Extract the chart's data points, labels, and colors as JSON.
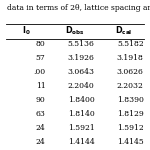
{
  "title": "data in terms of 2θ, lattice spacing and",
  "col_labels": [
    "$\\mathbf{I_0}$",
    "$\\mathbf{D_{obs}}$",
    "$\\mathbf{D_{cal}}$"
  ],
  "rows": [
    [
      "80",
      "5.5136",
      "5.5182"
    ],
    [
      "57",
      "3.1926",
      "3.1918"
    ],
    [
      ".00",
      "3.0643",
      "3.0626"
    ],
    [
      "11",
      "2.2040",
      "2.2032"
    ],
    [
      "90",
      "1.8400",
      "1.8390"
    ],
    [
      "63",
      "1.8140",
      "1.8129"
    ],
    [
      "24",
      "1.5921",
      "1.5912"
    ],
    [
      "24",
      "1.4144",
      "1.4145"
    ]
  ],
  "background_color": "#ffffff",
  "font_size": 5.5,
  "header_font_size": 5.8,
  "line_color": "#000000",
  "line_width": 0.6
}
